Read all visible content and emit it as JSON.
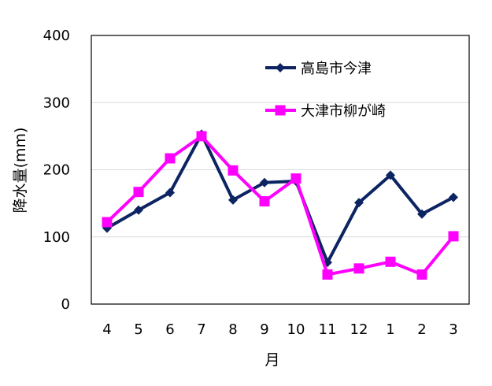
{
  "chart_data": {
    "type": "line",
    "categories": [
      "4",
      "5",
      "6",
      "7",
      "8",
      "9",
      "10",
      "11",
      "12",
      "1",
      "2",
      "3"
    ],
    "xlabel": "月",
    "ylabel": "降水量(mm)",
    "ylim": [
      0,
      400
    ],
    "yticks": [
      0,
      100,
      200,
      300,
      400
    ],
    "grid": true,
    "legend_position": "top-right",
    "series": [
      {
        "name": "高島市今津",
        "color": "#0d2462",
        "marker": "diamond",
        "values": [
          113,
          140,
          166,
          253,
          155,
          181,
          183,
          62,
          151,
          192,
          134,
          159
        ]
      },
      {
        "name": "大津市柳が崎",
        "color": "#ff00ff",
        "marker": "square",
        "values": [
          122,
          167,
          217,
          250,
          199,
          153,
          187,
          44,
          53,
          63,
          44,
          101
        ]
      }
    ]
  }
}
